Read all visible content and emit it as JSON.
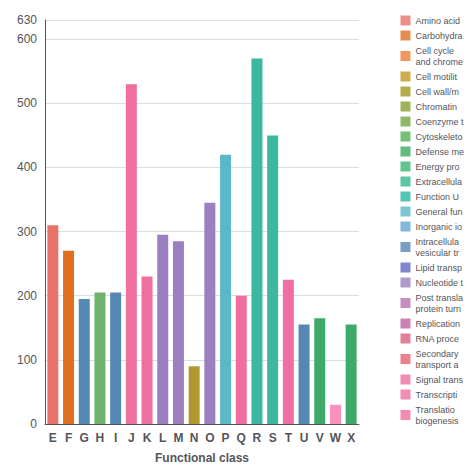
{
  "chart_data": {
    "type": "bar",
    "categories": [
      "E",
      "F",
      "G",
      "H",
      "I",
      "J",
      "K",
      "L",
      "M",
      "N",
      "O",
      "P",
      "Q",
      "R",
      "S",
      "T",
      "U",
      "V",
      "W",
      "X"
    ],
    "values": [
      310,
      270,
      195,
      205,
      205,
      530,
      230,
      295,
      285,
      90,
      345,
      420,
      200,
      570,
      450,
      225,
      155,
      165,
      30,
      155
    ],
    "colors": [
      "#E8736A",
      "#E07020",
      "#5588B5",
      "#6DB36D",
      "#5588B5",
      "#F06FA0",
      "#F06FA0",
      "#9B7FC0",
      "#9B7FC0",
      "#B09830",
      "#9B7FC0",
      "#5BB8C8",
      "#F06FA0",
      "#3DB8A0",
      "#3DB8A0",
      "#F06FA0",
      "#5588B5",
      "#3DAA6A",
      "#F890C0",
      "#3DAA6A"
    ],
    "xlabel": "Functional class",
    "ylim": [
      0,
      630
    ],
    "yticks": [
      0,
      100,
      200,
      300,
      400,
      500,
      600
    ],
    "grid": true,
    "legend": "right",
    "legend_entries": [
      {
        "name": "Amino acid",
        "color": "#E8736A"
      },
      {
        "name": "Carbohydra",
        "color": "#E07020"
      },
      {
        "name": "Cell cycle \nand chrome",
        "color": "#E88030"
      },
      {
        "name": "Cell motilit",
        "color": "#C09820"
      },
      {
        "name": "Cell wall/m",
        "color": "#A09820"
      },
      {
        "name": "Chromatin",
        "color": "#8AA030"
      },
      {
        "name": "Coenzyme t",
        "color": "#72A840"
      },
      {
        "name": "Cytoskeleto",
        "color": "#52B050"
      },
      {
        "name": "Defense me",
        "color": "#3AAA60"
      },
      {
        "name": "Energy pro",
        "color": "#38B870"
      },
      {
        "name": "Extracellula",
        "color": "#32B888"
      },
      {
        "name": "Function U",
        "color": "#28B8A0"
      },
      {
        "name": "General fun",
        "color": "#5BB8C8"
      },
      {
        "name": "Inorganic io",
        "color": "#60A8D0"
      },
      {
        "name": "Intracellula\nvesicular tr",
        "color": "#5588B5"
      },
      {
        "name": "Lipid transp",
        "color": "#6068C0"
      },
      {
        "name": "Nucleotide t",
        "color": "#9B7FC0"
      },
      {
        "name": "Post transla\nprotein turn",
        "color": "#B870B0"
      },
      {
        "name": "Replication",
        "color": "#C060A0"
      },
      {
        "name": "RNA proce",
        "color": "#D86080"
      },
      {
        "name": "Secondary \ntransport a",
        "color": "#E86070"
      },
      {
        "name": "Signal trans",
        "color": "#F06FA0"
      },
      {
        "name": "Transcripti",
        "color": "#F06FA0"
      },
      {
        "name": "Translatio\nbiogenesis",
        "color": "#F06FA0"
      }
    ]
  }
}
